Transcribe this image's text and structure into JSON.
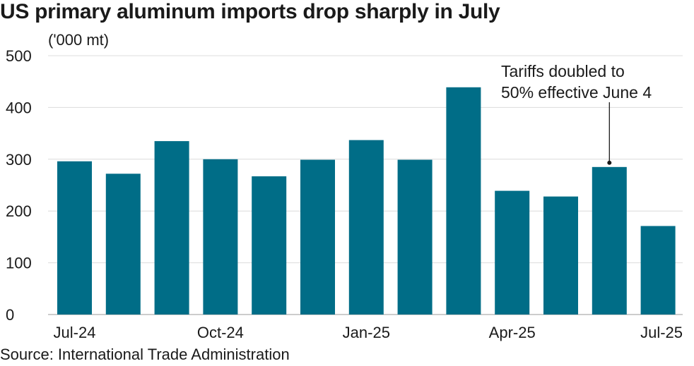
{
  "title": "US primary aluminum imports drop sharply in July",
  "source": "Source: International Trade Administration",
  "chart_data": {
    "type": "bar",
    "ylabel": "('000 mt)",
    "xlabel": "",
    "ylim": [
      0,
      500
    ],
    "yticks": [
      0,
      100,
      200,
      300,
      400,
      500
    ],
    "grid": true,
    "categories": [
      "Jul-24",
      "Aug-24",
      "Sep-24",
      "Oct-24",
      "Nov-24",
      "Dec-24",
      "Jan-25",
      "Feb-25",
      "Mar-25",
      "Apr-25",
      "May-25",
      "Jun-25",
      "Jul-25"
    ],
    "x_tick_labels": [
      {
        "category": "Jul-24",
        "label": "Jul-24"
      },
      {
        "category": "Oct-24",
        "label": "Oct-24"
      },
      {
        "category": "Jan-25",
        "label": "Jan-25"
      },
      {
        "category": "Apr-25",
        "label": "Apr-25"
      },
      {
        "category": "Jul-25",
        "label": "Jul-25"
      }
    ],
    "values": [
      296,
      272,
      335,
      300,
      267,
      299,
      337,
      299,
      439,
      239,
      228,
      285,
      171
    ],
    "bar_color": "#006d87",
    "annotation": {
      "category": "Jun-25",
      "lines": [
        "Tariffs doubled to",
        "50% effective June 4"
      ]
    }
  }
}
